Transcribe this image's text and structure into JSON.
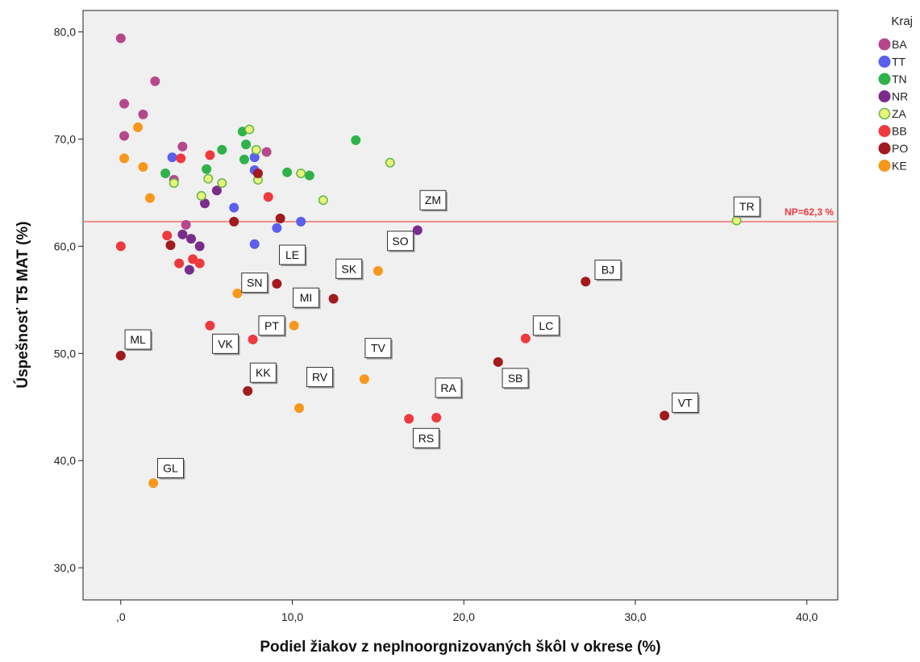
{
  "chart_data": {
    "type": "scatter",
    "xlabel": "Podiel žiakov z neplnoorgnizovaných škôl v okrese (%)",
    "ylabel": "Úspešnosť T5 MAT (%)",
    "xlim": [
      -2.2,
      41.8
    ],
    "ylim": [
      27,
      82
    ],
    "x_ticks": [
      0,
      10,
      20,
      30,
      40
    ],
    "x_tick_labels": [
      ",0",
      "10,0",
      "20,0",
      "30,0",
      "40,0"
    ],
    "y_ticks": [
      30,
      40,
      50,
      60,
      70,
      80
    ],
    "y_tick_labels": [
      "30,0",
      "40,0",
      "50,0",
      "60,0",
      "70,0",
      "80,0"
    ],
    "grid": false,
    "background": "#f0f0f0",
    "legend": {
      "title": "Kraj",
      "placement": "right",
      "entries": [
        {
          "name": "BA",
          "color": "#b6478c"
        },
        {
          "name": "TT",
          "color": "#5a5ff0"
        },
        {
          "name": "TN",
          "color": "#2fb24a"
        },
        {
          "name": "NR",
          "color": "#7a2d8c"
        },
        {
          "name": "ZA",
          "color": "#e8f57a",
          "hollow": true
        },
        {
          "name": "BB",
          "color": "#ee3a3e"
        },
        {
          "name": "PO",
          "color": "#a21a1d"
        },
        {
          "name": "KE",
          "color": "#f7981d"
        }
      ]
    },
    "reference_line": {
      "y": 62.3,
      "label": "NP=62,3 %",
      "color": "#ee3a3e"
    },
    "series": [
      {
        "name": "BA",
        "points": [
          [
            0,
            79.4
          ],
          [
            0.2,
            73.3
          ],
          [
            1.3,
            72.3
          ],
          [
            2,
            75.4
          ],
          [
            0.2,
            70.3
          ],
          [
            3.6,
            69.3
          ],
          [
            8.5,
            68.8
          ],
          [
            3.8,
            62
          ],
          [
            3.1,
            66.2
          ]
        ]
      },
      {
        "name": "TT",
        "points": [
          [
            3,
            68.3
          ],
          [
            7.8,
            68.3
          ],
          [
            7.8,
            67.1
          ],
          [
            6.6,
            63.6
          ],
          [
            9.1,
            61.7
          ],
          [
            10.5,
            62.3
          ],
          [
            7.8,
            60.2
          ]
        ]
      },
      {
        "name": "TN",
        "points": [
          [
            2.6,
            66.8
          ],
          [
            5,
            67.2
          ],
          [
            5.9,
            69
          ],
          [
            7.1,
            70.7
          ],
          [
            7.3,
            69.5
          ],
          [
            7.2,
            68.1
          ],
          [
            9.7,
            66.9
          ],
          [
            11,
            66.6
          ],
          [
            13.7,
            69.9
          ]
        ]
      },
      {
        "name": "NR",
        "points": [
          [
            4.9,
            64
          ],
          [
            5.6,
            65.2
          ],
          [
            3.6,
            61.1
          ],
          [
            4.1,
            60.7
          ],
          [
            4.6,
            60
          ],
          [
            4,
            57.8
          ],
          [
            17.3,
            61.5
          ]
        ]
      },
      {
        "name": "ZA",
        "points": [
          [
            3.1,
            65.9
          ],
          [
            4.7,
            64.7
          ],
          [
            5.1,
            66.3
          ],
          [
            5.9,
            65.9
          ],
          [
            7.5,
            70.9
          ],
          [
            7.9,
            69
          ],
          [
            8,
            66.2
          ],
          [
            10.5,
            66.8
          ],
          [
            11.8,
            64.3
          ],
          [
            15.7,
            67.8
          ],
          [
            35.9,
            62.4
          ]
        ]
      },
      {
        "name": "BB",
        "points": [
          [
            3.5,
            68.2
          ],
          [
            5.2,
            68.5
          ],
          [
            2.7,
            61
          ],
          [
            8.6,
            64.6
          ],
          [
            0,
            60
          ],
          [
            3.4,
            58.4
          ],
          [
            4.2,
            58.8
          ],
          [
            4.6,
            58.4
          ],
          [
            5.2,
            52.6
          ],
          [
            7.7,
            51.3
          ],
          [
            16.8,
            43.9
          ],
          [
            18.4,
            44
          ],
          [
            23.6,
            51.4
          ]
        ]
      },
      {
        "name": "PO",
        "points": [
          [
            8,
            66.8
          ],
          [
            2.9,
            60.1
          ],
          [
            6.6,
            62.3
          ],
          [
            9.3,
            62.6
          ],
          [
            9.1,
            56.5
          ],
          [
            12.4,
            55.1
          ],
          [
            7.4,
            46.5
          ],
          [
            0,
            49.8
          ],
          [
            22,
            49.2
          ],
          [
            27.1,
            56.7
          ],
          [
            31.7,
            44.2
          ]
        ]
      },
      {
        "name": "KE",
        "points": [
          [
            1,
            71.1
          ],
          [
            0.2,
            68.2
          ],
          [
            1.3,
            67.4
          ],
          [
            1.7,
            64.5
          ],
          [
            6.8,
            55.6
          ],
          [
            10.1,
            52.6
          ],
          [
            15,
            57.7
          ],
          [
            14.2,
            47.6
          ],
          [
            10.4,
            44.9
          ],
          [
            1.9,
            37.9
          ]
        ]
      }
    ],
    "annotations": [
      {
        "text": "ZM",
        "x": 18.2,
        "y": 64.3
      },
      {
        "text": "TR",
        "x": 36.5,
        "y": 63.7
      },
      {
        "text": "SO",
        "x": 16.3,
        "y": 60.5
      },
      {
        "text": "LE",
        "x": 10,
        "y": 59.2
      },
      {
        "text": "BJ",
        "x": 28.4,
        "y": 57.8
      },
      {
        "text": "SK",
        "x": 13.3,
        "y": 57.9
      },
      {
        "text": "SN",
        "x": 7.8,
        "y": 56.6
      },
      {
        "text": "MI",
        "x": 10.8,
        "y": 55.2
      },
      {
        "text": "PT",
        "x": 8.8,
        "y": 52.6
      },
      {
        "text": "LC",
        "x": 24.8,
        "y": 52.6
      },
      {
        "text": "ML",
        "x": 1,
        "y": 51.3
      },
      {
        "text": "VK",
        "x": 6.1,
        "y": 50.9
      },
      {
        "text": "TV",
        "x": 15,
        "y": 50.5
      },
      {
        "text": "KK",
        "x": 8.3,
        "y": 48.2
      },
      {
        "text": "RV",
        "x": 11.6,
        "y": 47.8
      },
      {
        "text": "SB",
        "x": 23,
        "y": 47.7
      },
      {
        "text": "RA",
        "x": 19.1,
        "y": 46.8
      },
      {
        "text": "VT",
        "x": 32.9,
        "y": 45.4
      },
      {
        "text": "RS",
        "x": 17.8,
        "y": 42.1
      },
      {
        "text": "GL",
        "x": 2.9,
        "y": 39.3
      }
    ]
  }
}
